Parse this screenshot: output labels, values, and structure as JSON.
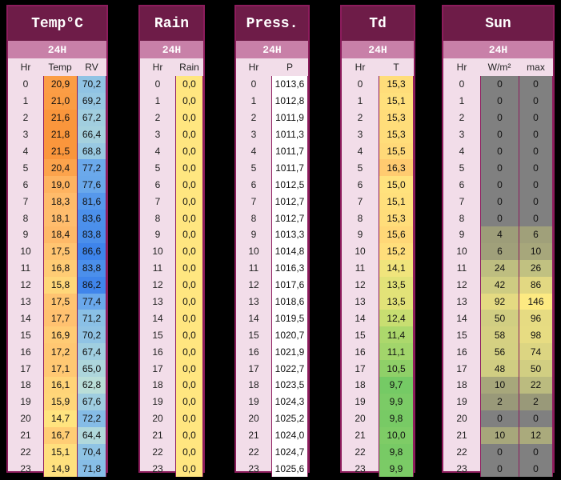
{
  "colors": {
    "panel_border": "#8c1c5c",
    "title_bg": "#6e1c48",
    "sub_bg": "#c880a8",
    "panel_bg": "#f2dde9",
    "value_yellow": "#ffe680",
    "value_white": "#ffffff",
    "sun_gray": "#808080"
  },
  "panels": {
    "temp": {
      "title": "Temp°C",
      "sub": "24H",
      "headers": [
        "Hr",
        "Temp",
        "RV"
      ],
      "temp": [
        "20,9",
        "21,0",
        "21,6",
        "21,8",
        "21,5",
        "20,4",
        "19,0",
        "18,3",
        "18,1",
        "18,4",
        "17,5",
        "16,8",
        "15,8",
        "17,5",
        "17,7",
        "16,9",
        "17,2",
        "17,1",
        "16,1",
        "15,9",
        "14,7",
        "16,7",
        "15,1",
        "14,9"
      ],
      "rv": [
        "70,2",
        "69,2",
        "67,2",
        "66,4",
        "68,8",
        "77,2",
        "77,6",
        "81,6",
        "83,6",
        "83,8",
        "86,6",
        "83,8",
        "86,2",
        "77,4",
        "71,2",
        "70,2",
        "67,4",
        "65,0",
        "62,8",
        "67,6",
        "72,2",
        "64,4",
        "70,4",
        "71,8"
      ]
    },
    "rain": {
      "title": "Rain",
      "sub": "24H",
      "headers": [
        "Hr",
        "Rain"
      ],
      "values": [
        "0,0",
        "0,0",
        "0,0",
        "0,0",
        "0,0",
        "0,0",
        "0,0",
        "0,0",
        "0,0",
        "0,0",
        "0,0",
        "0,0",
        "0,0",
        "0,0",
        "0,0",
        "0,0",
        "0,0",
        "0,0",
        "0,0",
        "0,0",
        "0,0",
        "0,0",
        "0,0",
        "0,0"
      ]
    },
    "press": {
      "title": "Press.",
      "sub": "24H",
      "headers": [
        "Hr",
        "P"
      ],
      "values": [
        "1013,6",
        "1012,8",
        "1011,9",
        "1011,3",
        "1011,7",
        "1011,7",
        "1012,5",
        "1012,7",
        "1012,7",
        "1013,3",
        "1014,8",
        "1016,3",
        "1017,6",
        "1018,6",
        "1019,5",
        "1020,7",
        "1021,9",
        "1022,7",
        "1023,5",
        "1024,3",
        "1025,2",
        "1024,0",
        "1024,7",
        "1025,6"
      ]
    },
    "td": {
      "title": "Td",
      "sub": "24H",
      "headers": [
        "Hr",
        "T"
      ],
      "values": [
        "15,3",
        "15,1",
        "15,3",
        "15,3",
        "15,5",
        "16,3",
        "15,0",
        "15,1",
        "15,3",
        "15,6",
        "15,2",
        "14,1",
        "13,5",
        "13,5",
        "12,4",
        "11,4",
        "11,1",
        "10,5",
        "9,7",
        "9,9",
        "9,8",
        "10,0",
        "9,8",
        "9,9"
      ]
    },
    "sun": {
      "title": "Sun",
      "sub": "24H",
      "headers": [
        "Hr",
        "W/m²",
        "max"
      ],
      "wm2": [
        "0",
        "0",
        "0",
        "0",
        "0",
        "0",
        "0",
        "0",
        "0",
        "4",
        "6",
        "24",
        "42",
        "92",
        "50",
        "58",
        "56",
        "48",
        "10",
        "2",
        "0",
        "10",
        "0",
        "0"
      ],
      "max": [
        "0",
        "0",
        "0",
        "0",
        "0",
        "0",
        "0",
        "0",
        "0",
        "6",
        "10",
        "26",
        "86",
        "146",
        "96",
        "98",
        "74",
        "50",
        "22",
        "2",
        "0",
        "12",
        "0",
        "0"
      ]
    }
  },
  "hours": [
    "0",
    "1",
    "2",
    "3",
    "4",
    "5",
    "6",
    "7",
    "8",
    "9",
    "10",
    "11",
    "12",
    "13",
    "14",
    "15",
    "16",
    "17",
    "18",
    "19",
    "20",
    "21",
    "22",
    "23"
  ]
}
